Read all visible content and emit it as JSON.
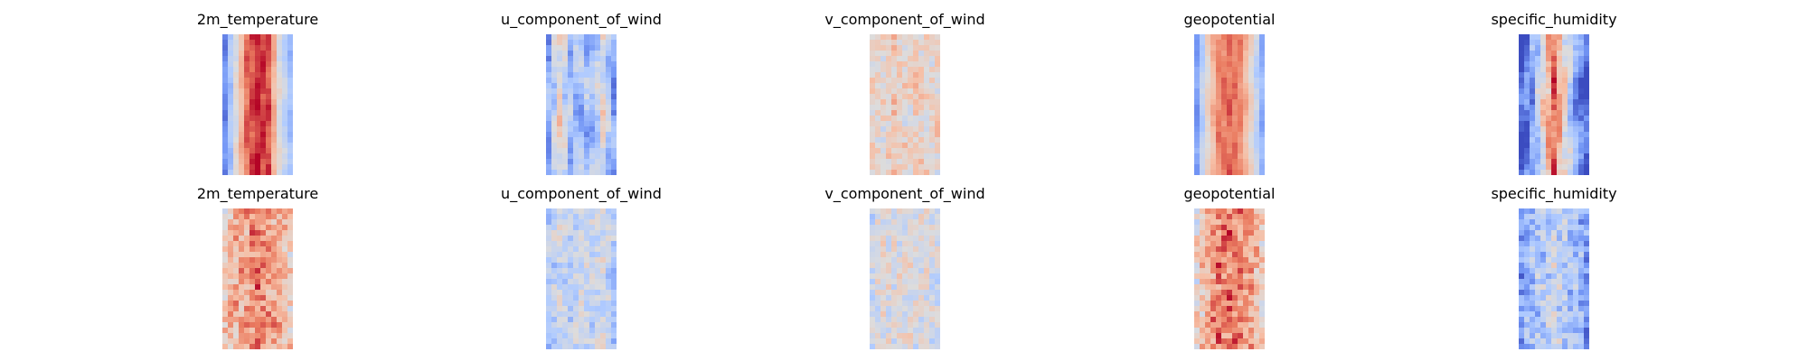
{
  "chart_data": {
    "type": "heatmap",
    "colormap": "coolwarm",
    "colormap_stops": [
      "#3b4cc0",
      "#7396f5",
      "#b0cbff",
      "#dddcdc",
      "#f6bfa6",
      "#ea7b60",
      "#b40426"
    ],
    "axes_visible": false,
    "grid": false,
    "legend": "none",
    "rows": [
      {
        "panels": [
          {
            "title": "2m_temperature",
            "pattern": "smooth",
            "profile": [
              0.15,
              0.5,
              0.85,
              0.95,
              0.9,
              0.5,
              0.3
            ]
          },
          {
            "title": "u_component_of_wind",
            "pattern": "streaky",
            "profile": [
              0.25,
              0.55,
              0.3,
              0.3,
              0.3,
              0.5,
              0.2
            ]
          },
          {
            "title": "v_component_of_wind",
            "pattern": "noisy-mild",
            "profile": [
              0.55,
              0.55,
              0.6,
              0.55,
              0.6,
              0.55,
              0.55
            ]
          },
          {
            "title": "geopotential",
            "pattern": "smooth",
            "profile": [
              0.2,
              0.55,
              0.8,
              0.85,
              0.8,
              0.55,
              0.25
            ]
          },
          {
            "title": "specific_humidity",
            "pattern": "streaky",
            "profile": [
              0.05,
              0.2,
              0.55,
              0.85,
              0.55,
              0.2,
              0.05
            ]
          }
        ]
      },
      {
        "panels": [
          {
            "title": "2m_temperature",
            "pattern": "noisy",
            "profile": [
              0.6,
              0.7,
              0.75,
              0.8,
              0.75,
              0.7,
              0.6
            ]
          },
          {
            "title": "u_component_of_wind",
            "pattern": "noisy-mild",
            "profile": [
              0.35,
              0.45,
              0.4,
              0.45,
              0.4,
              0.45,
              0.35
            ]
          },
          {
            "title": "v_component_of_wind",
            "pattern": "noisy-mild",
            "profile": [
              0.45,
              0.5,
              0.48,
              0.5,
              0.48,
              0.5,
              0.45
            ]
          },
          {
            "title": "geopotential",
            "pattern": "noisy",
            "profile": [
              0.55,
              0.7,
              0.8,
              0.82,
              0.8,
              0.72,
              0.6
            ]
          },
          {
            "title": "specific_humidity",
            "pattern": "noisy",
            "profile": [
              0.2,
              0.3,
              0.35,
              0.45,
              0.35,
              0.3,
              0.2
            ]
          }
        ]
      }
    ]
  }
}
